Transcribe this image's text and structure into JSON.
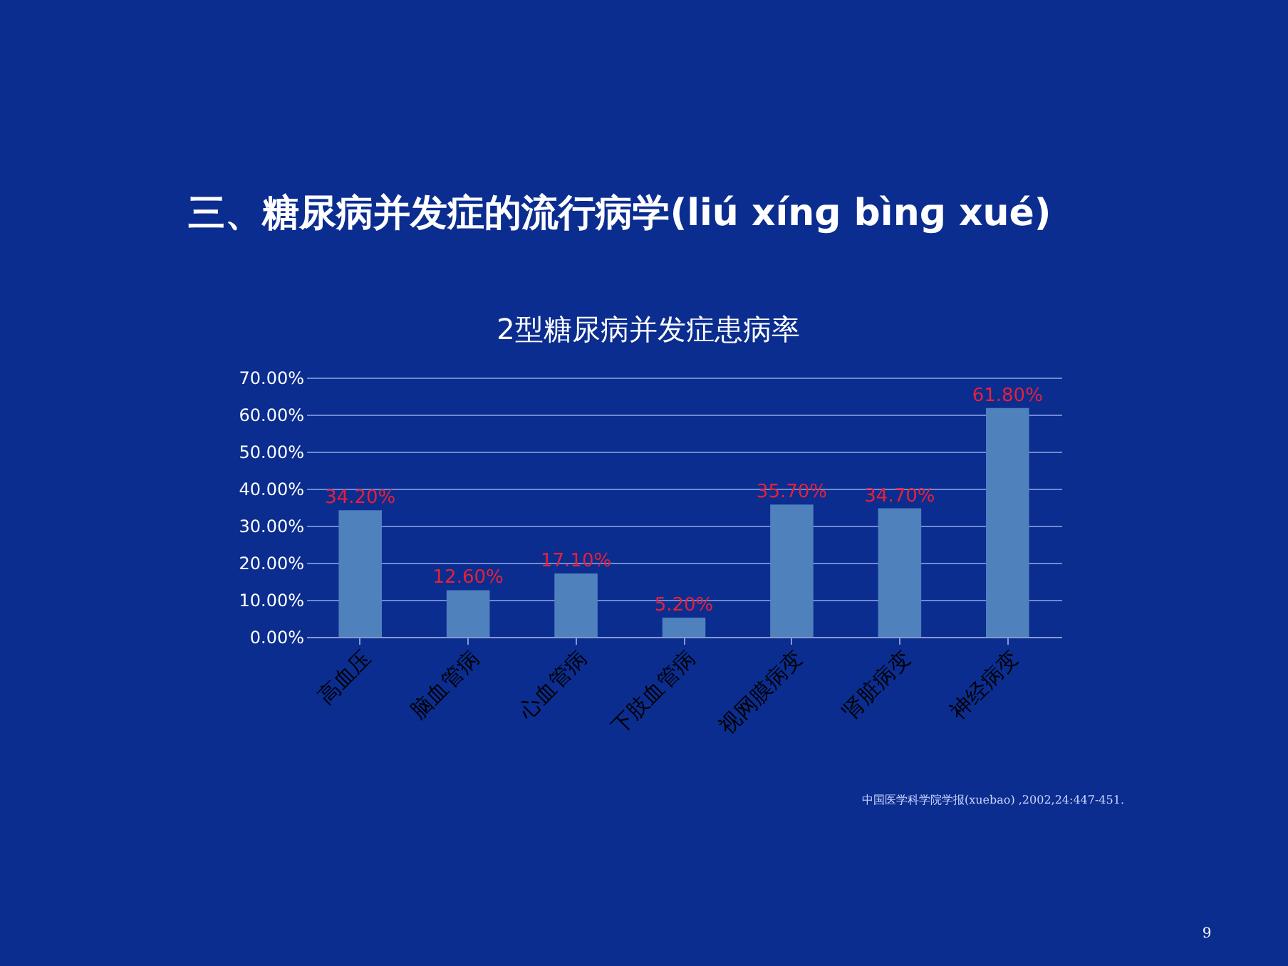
{
  "chart_data": {
    "type": "bar",
    "title": "三、糖尿病并发症的流行病学(liú xínɡ bìnɡ xué)",
    "subtitle": "2型糖尿病并发症患病率",
    "categories": [
      "高血压",
      "脑血管病",
      "心血管病",
      "下肢血管病",
      "视网膜病变",
      "肾脏病变",
      "神经病变"
    ],
    "values": [
      34.2,
      12.6,
      17.1,
      5.2,
      35.7,
      34.7,
      61.8
    ],
    "value_labels": [
      "34.20%",
      "12.60%",
      "17.10%",
      "5.20%",
      "35.70%",
      "34.70%",
      "61.80%"
    ],
    "color": "#4f81bd",
    "ylim": [
      0,
      70
    ],
    "yticks": [
      {
        "value": 0,
        "label": "0.00%"
      },
      {
        "value": 10,
        "label": "10.00%"
      },
      {
        "value": 20,
        "label": "20.00%"
      },
      {
        "value": 30,
        "label": "30.00%"
      },
      {
        "value": 40,
        "label": "40.00%"
      },
      {
        "value": 50,
        "label": "50.00%"
      },
      {
        "value": 60,
        "label": "60.00%"
      },
      {
        "value": 70,
        "label": "70.00%"
      }
    ],
    "grid": "y",
    "annotations": [
      "中国医学科学院学报(xuebao) ,2002,24:447-451.",
      "9"
    ]
  }
}
